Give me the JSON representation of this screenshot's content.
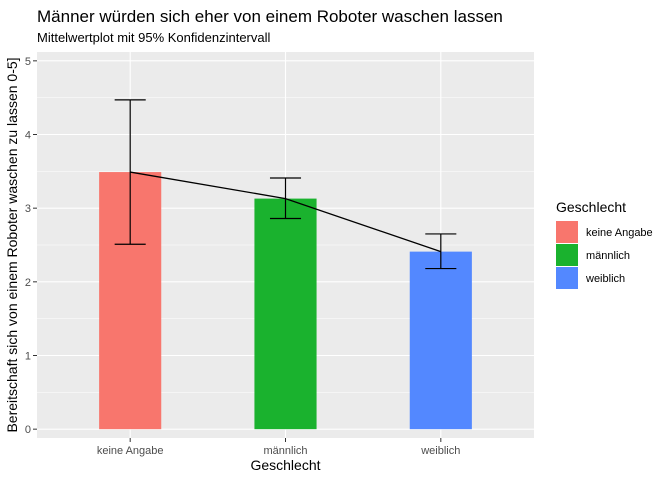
{
  "chart_data": {
    "type": "bar",
    "title": "Männer würden sich eher von einem Roboter waschen lassen",
    "subtitle": "Mittelwertplot mit 95% Konfidenzintervall",
    "xlabel": "Geschlecht",
    "ylabel": "Bereitschaft sich von einem Roboter waschen zu lassen 0-5]",
    "categories": [
      "keine Angabe",
      "männlich",
      "weiblich"
    ],
    "values": [
      3.49,
      3.13,
      2.41
    ],
    "ci_lower": [
      2.51,
      2.86,
      2.18
    ],
    "ci_upper": [
      4.47,
      3.41,
      2.65
    ],
    "colors": [
      "#F8766D",
      "#1AB22E",
      "#5388FF"
    ],
    "ylim": [
      -0.12,
      5.12
    ],
    "yticks": [
      0,
      1,
      2,
      3,
      4,
      5
    ],
    "grid": true,
    "mean_line": true,
    "legend": {
      "title": "Geschlecht",
      "position": "right",
      "entries": [
        "keine Angabe",
        "männlich",
        "weiblich"
      ]
    }
  }
}
